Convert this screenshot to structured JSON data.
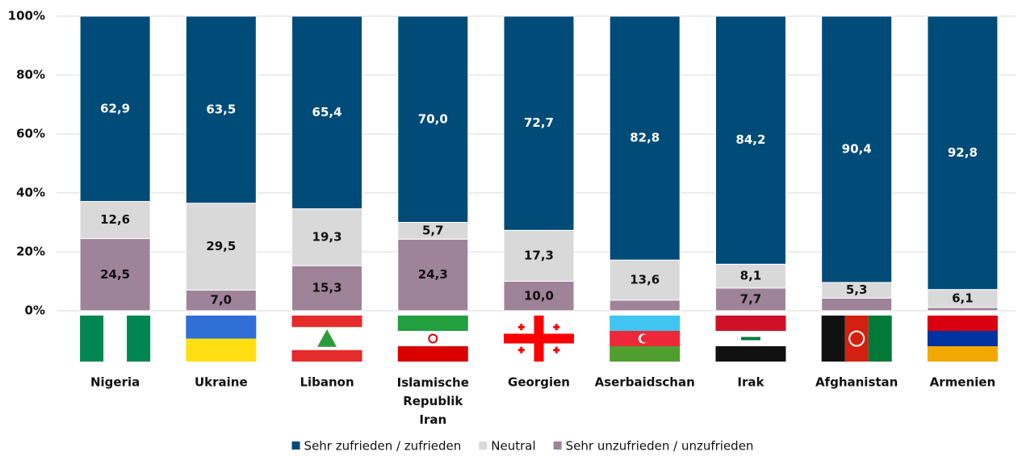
{
  "chart_data": {
    "type": "stacked_bar",
    "categories": [
      "Nigeria",
      "Ukraine",
      "Libanon",
      "Islamische Republik Iran",
      "Georgien",
      "Aserbaidschan",
      "Irak",
      "Afghanistan",
      "Armenien"
    ],
    "series": [
      {
        "name": "Sehr zufrieden / zufrieden",
        "color": "#004b78",
        "values": [
          62.9,
          63.5,
          65.4,
          70.0,
          72.7,
          82.8,
          84.2,
          90.4,
          92.8
        ],
        "value_labels": [
          "62,9",
          "63,5",
          "65,4",
          "70,0",
          "72,7",
          "82,8",
          "84,2",
          "90,4",
          "92,8"
        ]
      },
      {
        "name": "Neutral",
        "color": "#d9d9d9",
        "values": [
          12.6,
          29.5,
          19.3,
          5.7,
          17.3,
          13.6,
          8.1,
          5.3,
          6.1
        ],
        "value_labels": [
          "12,6",
          "29,5",
          "19,3",
          "5,7",
          "17,3",
          "13,6",
          "8,1",
          "5,3",
          "6,1"
        ]
      },
      {
        "name": "Sehr unzufrieden / unzufrieden",
        "color": "#9e8399",
        "values": [
          24.5,
          7.0,
          15.3,
          24.3,
          10.0,
          3.6,
          7.7,
          4.3,
          1.1
        ],
        "value_labels": [
          "24,5",
          "7,0",
          "15,3",
          "24,3",
          "10,0",
          null,
          "7,7",
          null,
          null
        ]
      }
    ],
    "ylim": [
      0,
      100
    ],
    "yticks": [
      {
        "value": 0,
        "label": "0%"
      },
      {
        "value": 20,
        "label": "20%"
      },
      {
        "value": 40,
        "label": "40%"
      },
      {
        "value": 60,
        "label": "60%"
      },
      {
        "value": 80,
        "label": "80%"
      },
      {
        "value": 100,
        "label": "100%"
      }
    ],
    "grid": true
  }
}
